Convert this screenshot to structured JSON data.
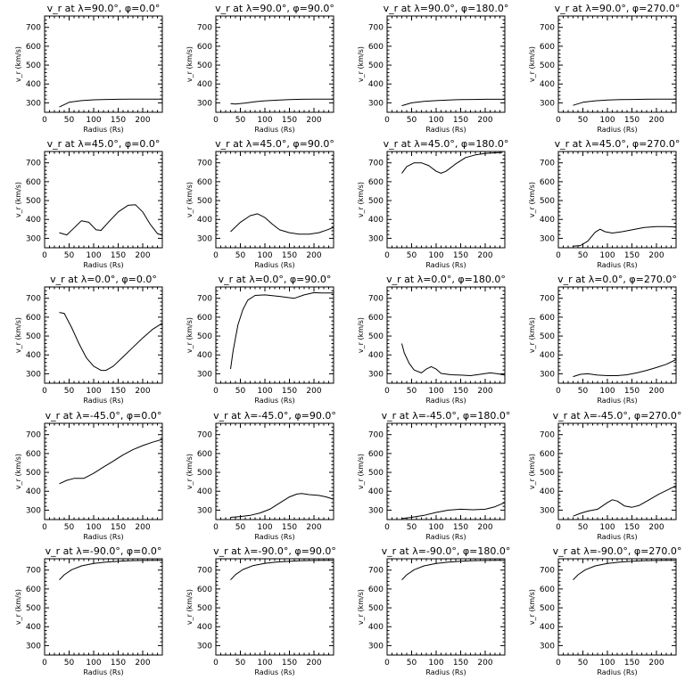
{
  "chart_data": [
    {
      "type": "line",
      "title": "v_r at λ=90.0°, φ=0.0°",
      "xlabel": "Radius (Rs)",
      "ylabel": "v_r (km/s)",
      "xlim": [
        0,
        240
      ],
      "ylim": [
        250,
        760
      ],
      "xticks": [
        0,
        50,
        100,
        150,
        200
      ],
      "yticks": [
        300,
        400,
        500,
        600,
        700
      ],
      "x": [
        30,
        50,
        75,
        100,
        125,
        150,
        175,
        200,
        225,
        240
      ],
      "y": [
        278,
        303,
        312,
        316,
        318,
        319,
        320,
        320,
        320,
        320
      ]
    },
    {
      "type": "line",
      "title": "v_r at λ=90.0°, φ=90.0°",
      "xlabel": "Radius (Rs)",
      "ylabel": "v_r (km/s)",
      "xlim": [
        0,
        240
      ],
      "ylim": [
        250,
        760
      ],
      "xticks": [
        0,
        50,
        100,
        150,
        200
      ],
      "yticks": [
        300,
        400,
        500,
        600,
        700
      ],
      "x": [
        30,
        40,
        60,
        80,
        100,
        125,
        150,
        175,
        200,
        225,
        240
      ],
      "y": [
        296,
        294,
        299,
        306,
        311,
        314,
        317,
        319,
        320,
        320,
        320
      ]
    },
    {
      "type": "line",
      "title": "v_r at λ=90.0°, φ=180.0°",
      "xlabel": "Radius (Rs)",
      "ylabel": "v_r (km/s)",
      "xlim": [
        0,
        240
      ],
      "ylim": [
        250,
        760
      ],
      "xticks": [
        0,
        50,
        100,
        150,
        200
      ],
      "yticks": [
        300,
        400,
        500,
        600,
        700
      ],
      "x": [
        30,
        50,
        75,
        100,
        125,
        150,
        175,
        200,
        225,
        240
      ],
      "y": [
        285,
        300,
        308,
        312,
        315,
        317,
        318,
        319,
        319,
        319
      ]
    },
    {
      "type": "line",
      "title": "v_r at λ=90.0°, φ=270.0°",
      "xlabel": "Radius (Rs)",
      "ylabel": "v_r (km/s)",
      "xlim": [
        0,
        240
      ],
      "ylim": [
        250,
        760
      ],
      "xticks": [
        0,
        50,
        100,
        150,
        200
      ],
      "yticks": [
        300,
        400,
        500,
        600,
        700
      ],
      "x": [
        30,
        50,
        75,
        100,
        125,
        150,
        175,
        200,
        225,
        240
      ],
      "y": [
        287,
        303,
        311,
        315,
        317,
        318,
        319,
        320,
        320,
        320
      ]
    },
    {
      "type": "line",
      "title": "v_r at λ=45.0°, φ=0.0°",
      "xlabel": "Radius (Rs)",
      "ylabel": "v_r (km/s)",
      "xlim": [
        0,
        240
      ],
      "ylim": [
        250,
        760
      ],
      "xticks": [
        0,
        50,
        100,
        150,
        200
      ],
      "yticks": [
        300,
        400,
        500,
        600,
        700
      ],
      "x": [
        30,
        45,
        60,
        75,
        90,
        105,
        115,
        130,
        150,
        170,
        185,
        200,
        215,
        230,
        240
      ],
      "y": [
        330,
        318,
        355,
        393,
        385,
        345,
        342,
        385,
        440,
        475,
        478,
        440,
        375,
        325,
        316
      ]
    },
    {
      "type": "line",
      "title": "v_r at λ=45.0°, φ=90.0°",
      "xlabel": "Radius (Rs)",
      "ylabel": "v_r (km/s)",
      "xlim": [
        0,
        240
      ],
      "ylim": [
        250,
        760
      ],
      "xticks": [
        0,
        50,
        100,
        150,
        200
      ],
      "yticks": [
        300,
        400,
        500,
        600,
        700
      ],
      "x": [
        30,
        50,
        70,
        85,
        100,
        115,
        130,
        150,
        170,
        190,
        210,
        225,
        240
      ],
      "y": [
        335,
        385,
        420,
        430,
        410,
        375,
        345,
        330,
        322,
        322,
        330,
        343,
        358
      ]
    },
    {
      "type": "line",
      "title": "v_r at λ=45.0°, φ=180.0°",
      "xlabel": "Radius (Rs)",
      "ylabel": "v_r (km/s)",
      "xlim": [
        0,
        240
      ],
      "ylim": [
        250,
        760
      ],
      "xticks": [
        0,
        50,
        100,
        150,
        200
      ],
      "yticks": [
        300,
        400,
        500,
        600,
        700
      ],
      "x": [
        30,
        40,
        55,
        70,
        85,
        100,
        110,
        120,
        140,
        160,
        180,
        200,
        220,
        235
      ],
      "y": [
        645,
        680,
        700,
        700,
        685,
        655,
        645,
        655,
        695,
        728,
        742,
        750,
        753,
        755
      ]
    },
    {
      "type": "line",
      "title": "v_r at λ=45.0°, φ=270.0°",
      "xlabel": "Radius (Rs)",
      "ylabel": "v_r (km/s)",
      "xlim": [
        0,
        240
      ],
      "ylim": [
        250,
        760
      ],
      "xticks": [
        0,
        50,
        100,
        150,
        200
      ],
      "yticks": [
        300,
        400,
        500,
        600,
        700
      ],
      "x": [
        30,
        45,
        60,
        75,
        85,
        95,
        110,
        130,
        150,
        175,
        200,
        220,
        240
      ],
      "y": [
        258,
        262,
        285,
        332,
        348,
        335,
        328,
        335,
        345,
        357,
        362,
        362,
        360
      ]
    },
    {
      "type": "line",
      "title": "v_r at λ=0.0°, φ=0.0°",
      "xlabel": "Radius (Rs)",
      "ylabel": "v_r (km/s)",
      "xlim": [
        0,
        240
      ],
      "ylim": [
        250,
        760
      ],
      "xticks": [
        0,
        50,
        100,
        150,
        200
      ],
      "yticks": [
        300,
        400,
        500,
        600,
        700
      ],
      "x": [
        30,
        40,
        55,
        70,
        85,
        100,
        115,
        125,
        140,
        160,
        180,
        200,
        220,
        240
      ],
      "y": [
        625,
        620,
        545,
        460,
        385,
        340,
        318,
        318,
        340,
        390,
        440,
        490,
        535,
        568
      ]
    },
    {
      "type": "line",
      "title": "v_r at λ=0.0°, φ=90.0°",
      "xlabel": "Radius (Rs)",
      "ylabel": "v_r (km/s)",
      "xlim": [
        0,
        240
      ],
      "ylim": [
        250,
        760
      ],
      "xticks": [
        0,
        50,
        100,
        150,
        200
      ],
      "yticks": [
        300,
        400,
        500,
        600,
        700
      ],
      "x": [
        30,
        35,
        45,
        55,
        65,
        80,
        100,
        130,
        160,
        180,
        200,
        215,
        240
      ],
      "y": [
        325,
        420,
        560,
        640,
        690,
        715,
        718,
        710,
        700,
        718,
        730,
        728,
        728
      ]
    },
    {
      "type": "line",
      "title": "v_r at λ=0.0°, φ=180.0°",
      "xlabel": "Radius (Rs)",
      "ylabel": "v_r (km/s)",
      "xlim": [
        0,
        240
      ],
      "ylim": [
        250,
        760
      ],
      "xticks": [
        0,
        50,
        100,
        150,
        200
      ],
      "yticks": [
        300,
        400,
        500,
        600,
        700
      ],
      "x": [
        30,
        35,
        45,
        55,
        70,
        80,
        90,
        100,
        110,
        130,
        150,
        170,
        190,
        210,
        225,
        240
      ],
      "y": [
        460,
        410,
        355,
        320,
        305,
        325,
        338,
        325,
        302,
        295,
        293,
        290,
        297,
        305,
        300,
        293
      ]
    },
    {
      "type": "line",
      "title": "v_r at λ=0.0°, φ=270.0°",
      "xlabel": "Radius (Rs)",
      "ylabel": "v_r (km/s)",
      "xlim": [
        0,
        240
      ],
      "ylim": [
        250,
        760
      ],
      "xticks": [
        0,
        50,
        100,
        150,
        200
      ],
      "yticks": [
        300,
        400,
        500,
        600,
        700
      ],
      "x": [
        30,
        45,
        60,
        80,
        100,
        120,
        140,
        160,
        180,
        200,
        220,
        240
      ],
      "y": [
        285,
        297,
        300,
        293,
        290,
        290,
        295,
        305,
        318,
        333,
        350,
        375
      ]
    },
    {
      "type": "line",
      "title": "v_r at λ=-45.0°, φ=0.0°",
      "xlabel": "Radius (Rs)",
      "ylabel": "v_r (km/s)",
      "xlim": [
        0,
        240
      ],
      "ylim": [
        250,
        760
      ],
      "xticks": [
        0,
        50,
        100,
        150,
        200
      ],
      "yticks": [
        300,
        400,
        500,
        600,
        700
      ],
      "x": [
        30,
        45,
        60,
        80,
        100,
        120,
        140,
        160,
        180,
        200,
        220,
        240
      ],
      "y": [
        440,
        458,
        468,
        468,
        495,
        528,
        560,
        593,
        620,
        642,
        660,
        675
      ]
    },
    {
      "type": "line",
      "title": "v_r at λ=-45.0°, φ=90.0°",
      "xlabel": "Radius (Rs)",
      "ylabel": "v_r (km/s)",
      "xlim": [
        0,
        240
      ],
      "ylim": [
        250,
        760
      ],
      "xticks": [
        0,
        50,
        100,
        150,
        200
      ],
      "yticks": [
        300,
        400,
        500,
        600,
        700
      ],
      "x": [
        30,
        50,
        70,
        90,
        110,
        130,
        150,
        165,
        175,
        190,
        210,
        225,
        240
      ],
      "y": [
        262,
        266,
        272,
        285,
        305,
        338,
        370,
        385,
        388,
        382,
        378,
        370,
        358
      ]
    },
    {
      "type": "line",
      "title": "v_r at λ=-45.0°, φ=180.0°",
      "xlabel": "Radius (Rs)",
      "ylabel": "v_r (km/s)",
      "xlim": [
        0,
        240
      ],
      "ylim": [
        250,
        760
      ],
      "xticks": [
        0,
        50,
        100,
        150,
        200
      ],
      "yticks": [
        300,
        400,
        500,
        600,
        700
      ],
      "x": [
        30,
        50,
        75,
        100,
        125,
        150,
        175,
        200,
        220,
        240
      ],
      "y": [
        255,
        262,
        272,
        288,
        300,
        305,
        302,
        305,
        318,
        340
      ]
    },
    {
      "type": "line",
      "title": "v_r at λ=-45.0°, φ=270.0°",
      "xlabel": "Radius (Rs)",
      "ylabel": "v_r (km/s)",
      "xlim": [
        0,
        240
      ],
      "ylim": [
        250,
        760
      ],
      "xticks": [
        0,
        50,
        100,
        150,
        200
      ],
      "yticks": [
        300,
        400,
        500,
        600,
        700
      ],
      "x": [
        30,
        45,
        60,
        80,
        100,
        110,
        120,
        135,
        150,
        165,
        185,
        205,
        225,
        240
      ],
      "y": [
        268,
        283,
        295,
        305,
        340,
        355,
        348,
        322,
        315,
        325,
        355,
        385,
        410,
        430
      ]
    },
    {
      "type": "line",
      "title": "v_r at λ=-90.0°, φ=0.0°",
      "xlabel": "Radius (Rs)",
      "ylabel": "v_r (km/s)",
      "xlim": [
        0,
        240
      ],
      "ylim": [
        250,
        760
      ],
      "xticks": [
        0,
        50,
        100,
        150,
        200
      ],
      "yticks": [
        300,
        400,
        500,
        600,
        700
      ],
      "x": [
        30,
        40,
        55,
        75,
        100,
        125,
        150,
        175,
        200,
        225,
        240
      ],
      "y": [
        648,
        675,
        702,
        722,
        735,
        742,
        747,
        750,
        751,
        752,
        752
      ]
    },
    {
      "type": "line",
      "title": "v_r at λ=-90.0°, φ=90.0°",
      "xlabel": "Radius (Rs)",
      "ylabel": "v_r (km/s)",
      "xlim": [
        0,
        240
      ],
      "ylim": [
        250,
        760
      ],
      "xticks": [
        0,
        50,
        100,
        150,
        200
      ],
      "yticks": [
        300,
        400,
        500,
        600,
        700
      ],
      "x": [
        30,
        40,
        55,
        75,
        100,
        125,
        150,
        175,
        200,
        225,
        240
      ],
      "y": [
        648,
        676,
        703,
        723,
        736,
        743,
        747,
        750,
        751,
        752,
        752
      ]
    },
    {
      "type": "line",
      "title": "v_r at λ=-90.0°, φ=180.0°",
      "xlabel": "Radius (Rs)",
      "ylabel": "v_r (km/s)",
      "xlim": [
        0,
        240
      ],
      "ylim": [
        250,
        760
      ],
      "xticks": [
        0,
        50,
        100,
        150,
        200
      ],
      "yticks": [
        300,
        400,
        500,
        600,
        700
      ],
      "x": [
        30,
        40,
        55,
        75,
        100,
        125,
        150,
        175,
        200,
        225,
        240
      ],
      "y": [
        648,
        675,
        702,
        722,
        735,
        742,
        747,
        750,
        751,
        752,
        752
      ]
    },
    {
      "type": "line",
      "title": "v_r at λ=-90.0°, φ=270.0°",
      "xlabel": "Radius (Rs)",
      "ylabel": "v_r (km/s)",
      "xlim": [
        0,
        240
      ],
      "ylim": [
        250,
        760
      ],
      "xticks": [
        0,
        50,
        100,
        150,
        200
      ],
      "yticks": [
        300,
        400,
        500,
        600,
        700
      ],
      "x": [
        30,
        40,
        55,
        75,
        100,
        125,
        150,
        175,
        200,
        225,
        240
      ],
      "y": [
        648,
        675,
        702,
        722,
        735,
        742,
        747,
        750,
        751,
        752,
        752
      ]
    }
  ]
}
